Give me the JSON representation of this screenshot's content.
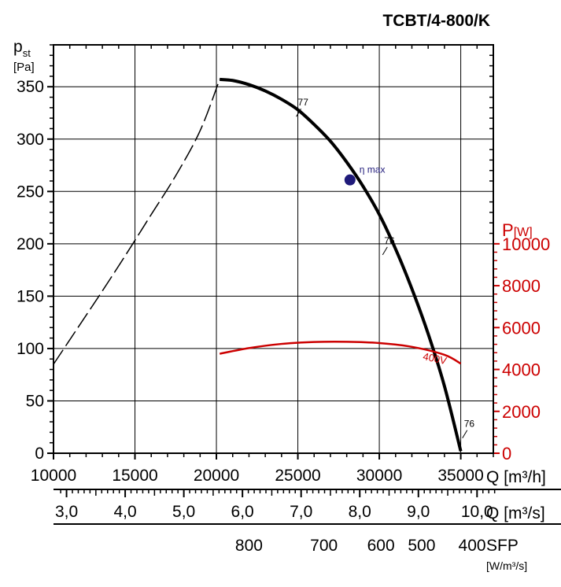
{
  "chart_data": {
    "type": "line",
    "title": "TCBT/4-800/K",
    "y_label_main": "p",
    "y_label_sub": "st",
    "y_unit": "[Pa]",
    "y2_label_main": "P",
    "y2_unit": "[W]",
    "x_label": "Q [m³/h]",
    "x2_label": "Q [m³/s]",
    "sfp_label": "SFP",
    "sfp_unit": "[W/m³/s]",
    "xlim": [
      10000,
      37000
    ],
    "ylim": [
      0,
      390
    ],
    "y2lim": [
      0,
      10000
    ],
    "grid": true,
    "x_ticks": [
      10000,
      15000,
      20000,
      25000,
      30000,
      35000
    ],
    "x_tick_labels": [
      "10000",
      "15000",
      "20000",
      "25000",
      "30000",
      "35000"
    ],
    "y_ticks": [
      0,
      50,
      100,
      150,
      200,
      250,
      300,
      350
    ],
    "y_tick_labels": [
      "0",
      "50",
      "100",
      "150",
      "200",
      "250",
      "300",
      "350"
    ],
    "y2_ticks": [
      0,
      2000,
      4000,
      6000,
      8000,
      10000
    ],
    "y2_tick_labels": [
      "0",
      "2000",
      "4000",
      "6000",
      "8000",
      "10000"
    ],
    "x2_ticks": [
      3.0,
      4.0,
      5.0,
      6.0,
      7.0,
      8.0,
      9.0,
      10.0
    ],
    "x2_tick_labels": [
      "3,0",
      "4,0",
      "5,0",
      "6,0",
      "7,0",
      "8,0",
      "9,0",
      "10,0"
    ],
    "sfp_ticks": [
      {
        "label": "800",
        "x": 22000
      },
      {
        "label": "700",
        "x": 26600
      },
      {
        "label": "600",
        "x": 30100
      },
      {
        "label": "500",
        "x": 32600
      },
      {
        "label": "400",
        "x": 35700
      }
    ],
    "series": [
      {
        "axis": "left",
        "style": "dashed",
        "color": "#000000",
        "x": [
          10000,
          11500,
          13000,
          14500,
          16000,
          17500,
          19000,
          20200
        ],
        "y": [
          85,
          120,
          155,
          191,
          228,
          265,
          308,
          357
        ]
      },
      {
        "axis": "left",
        "style": "solid",
        "color": "#000000",
        "x": [
          20200,
          21000,
          22000,
          23000,
          24000,
          25000,
          26000,
          27000,
          28000,
          29000,
          30000,
          31000,
          32000,
          33000,
          34000,
          35000
        ],
        "y": [
          357,
          356,
          352,
          346,
          338,
          328,
          314,
          298,
          278,
          255,
          228,
          195,
          157,
          114,
          64,
          2
        ]
      },
      {
        "name": "400V",
        "axis": "right",
        "style": "solid",
        "color": "#cc0000",
        "x": [
          20200,
          22000,
          24000,
          26000,
          28000,
          30000,
          32000,
          34000,
          35000
        ],
        "y": [
          4750,
          5020,
          5220,
          5310,
          5320,
          5260,
          5080,
          4700,
          4280
        ]
      }
    ],
    "eta_max": {
      "label": "η max",
      "x": 28200,
      "y": 261
    },
    "annotations": [
      {
        "text": "77",
        "x": 25000,
        "y": 332
      },
      {
        "text": "76",
        "x": 30300,
        "y": 200
      },
      {
        "text": "76",
        "x": 35200,
        "y": 25
      }
    ]
  }
}
